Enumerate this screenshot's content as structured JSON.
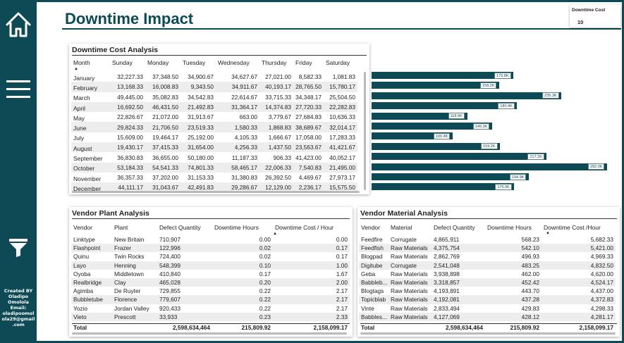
{
  "header": {
    "title": "Downtime Impact"
  },
  "kpi": {
    "label": "Downtime Cost",
    "value": "10"
  },
  "sidebar": {
    "icons": [
      "home-icon",
      "menu-icon",
      "filter-icon"
    ],
    "credit": [
      "Created BY",
      "Oladipo",
      "Omolola",
      "Email:",
      "oladipoomol",
      "ola29@gmail",
      ".com"
    ]
  },
  "cost_table": {
    "title": "Downtime Cost Analysis",
    "columns": [
      "Month",
      "Sunday",
      "Monday",
      "Tuesday",
      "Wednesday",
      "Thursday",
      "Friday",
      "Saturday"
    ],
    "rows": [
      [
        "January",
        "32,227.33",
        "37,348.50",
        "34,900.67",
        "34,627.67",
        "27,021.00",
        "8,582.33",
        "1,081.83"
      ],
      [
        "February",
        "13,168.33",
        "16,008.83",
        "9,343.50",
        "34,911.67",
        "40,193.17",
        "28,765.50",
        "15,780.17"
      ],
      [
        "March",
        "49,445.00",
        "35,082.83",
        "34,542.83",
        "22,614.67",
        "33,715.33",
        "34,348.17",
        "25,504.50"
      ],
      [
        "April",
        "16,692.50",
        "46,431.50",
        "21,492.83",
        "31,364.17",
        "14,374.83",
        "27,720.33",
        "22,282.83"
      ],
      [
        "May",
        "22,826.67",
        "21,072.00",
        "31,913.67",
        "663.00",
        "3,779.67",
        "27,684.83",
        "10,636.33"
      ],
      [
        "June",
        "29,824.33",
        "21,706.50",
        "23,519.33",
        "1,580.33",
        "1,868.83",
        "38,689.67",
        "32,014.17"
      ],
      [
        "July",
        "15,609.00",
        "19,464.17",
        "25,192.00",
        "4,105.33",
        "1,666.67",
        "17,058.00",
        "17,283.33"
      ],
      [
        "August",
        "19,430.17",
        "37,415.33",
        "31,654.00",
        "4,256.33",
        "1,437.50",
        "23,563.67",
        "41,421.67"
      ],
      [
        "September",
        "36,830.83",
        "36,655.00",
        "50,180.00",
        "11,187.33",
        "906.33",
        "41,423.00",
        "40,052.17"
      ],
      [
        "October",
        "53,184.33",
        "54,541.33",
        "74,801.33",
        "58,465.17",
        "22,006.33",
        "7,540.83",
        "21,495.00"
      ],
      [
        "November",
        "36,357.33",
        "37,202.00",
        "31,153.33",
        "31,380.83",
        "26,392.50",
        "4,469.67",
        "27,973.17"
      ],
      [
        "December",
        "44,111.17",
        "31,043.67",
        "42,491.83",
        "29,286.67",
        "12,129.00",
        "2,236.17",
        "15,575.50"
      ]
    ]
  },
  "chart_data": {
    "type": "bar",
    "orientation": "horizontal",
    "categories": [
      "January",
      "February",
      "March",
      "April",
      "May",
      "June",
      "July",
      "August",
      "September",
      "October",
      "November",
      "December"
    ],
    "values": [
      175.8,
      158.2,
      235.3,
      180.4,
      118.6,
      149.3,
      100.4,
      159.2,
      217.2,
      292.0,
      194.9,
      176.9
    ],
    "labels": [
      "175.8K",
      "158.2K",
      "235.3K",
      "180.4K",
      "118.6K",
      "149.3K",
      "100.4K",
      "159.2K",
      "217.2K",
      "292.0K",
      "194.9K",
      "176.9K"
    ],
    "color": "#0e4a56"
  },
  "plant_table": {
    "title": "Vendor Plant Analysis",
    "columns": [
      "Vendor",
      "Plant",
      "Defect Quantity",
      "Downtime Hours",
      "Downtime Cost / Hour"
    ],
    "rows": [
      [
        "Linktype",
        "New Britain",
        "710,907",
        "0.00",
        "0.00"
      ],
      [
        "Flashpoint",
        "Frazer",
        "122,996",
        "0.02",
        "0.17"
      ],
      [
        "Quinu",
        "Twin Rocks",
        "724,400",
        "0.02",
        "0.17"
      ],
      [
        "Layo",
        "Henning",
        "548,399",
        "0.10",
        "1.00"
      ],
      [
        "Oyoba",
        "Middletown",
        "410,840",
        "0.17",
        "1.67"
      ],
      [
        "Realbridge",
        "Clay",
        "465,028",
        "0.20",
        "2.00"
      ],
      [
        "Agimba",
        "De Ruyter",
        "729,855",
        "0.22",
        "2.17"
      ],
      [
        "Bubbletube",
        "Florence",
        "779,607",
        "0.22",
        "2.17"
      ],
      [
        "Yozio",
        "Jordan Valley",
        "920,433",
        "0.22",
        "2.17"
      ],
      [
        "Vieto",
        "Prescott",
        "33,933",
        "0.23",
        "2.33"
      ]
    ],
    "total": [
      "Total",
      "",
      "2,598,634,464",
      "215,809.92",
      "2,158,099.17"
    ]
  },
  "material_table": {
    "title": "Vendor Material Analysis",
    "columns": [
      "Vendor",
      "Material",
      "Defect Quantity",
      "Downtime Hours",
      "Downtime Cost /Hour"
    ],
    "rows": [
      [
        "Feedfire",
        "Corrugate",
        "4,865,911",
        "568.23",
        "5,682.33"
      ],
      [
        "Feedfish",
        "Raw Materials",
        "4,375,754",
        "542.10",
        "5,421.00"
      ],
      [
        "Blogpad",
        "Raw Materials",
        "2,862,769",
        "496.93",
        "4,969.33"
      ],
      [
        "Digitube",
        "Corrugate",
        "2,541,048",
        "483.25",
        "4,832.50"
      ],
      [
        "Geba",
        "Raw Materials",
        "3,938,898",
        "462.00",
        "4,620.00"
      ],
      [
        "Babbleb...",
        "Raw Materials",
        "3,318,857",
        "452.42",
        "4,524.17"
      ],
      [
        "Blogtags",
        "Raw Materials",
        "4,193,891",
        "443.70",
        "4,437.00"
      ],
      [
        "Topicblab",
        "Raw Materials",
        "4,192,081",
        "437.28",
        "4,372.83"
      ],
      [
        "Vinte",
        "Raw Materials",
        "2,833,494",
        "429.83",
        "4,298.33"
      ],
      [
        "Babbles...",
        "Raw Materials",
        "4,127,069",
        "428.12",
        "4,281.17"
      ]
    ],
    "total": [
      "Total",
      "",
      "2,598,634,464",
      "215,809.92",
      "2,158,099.17"
    ]
  }
}
